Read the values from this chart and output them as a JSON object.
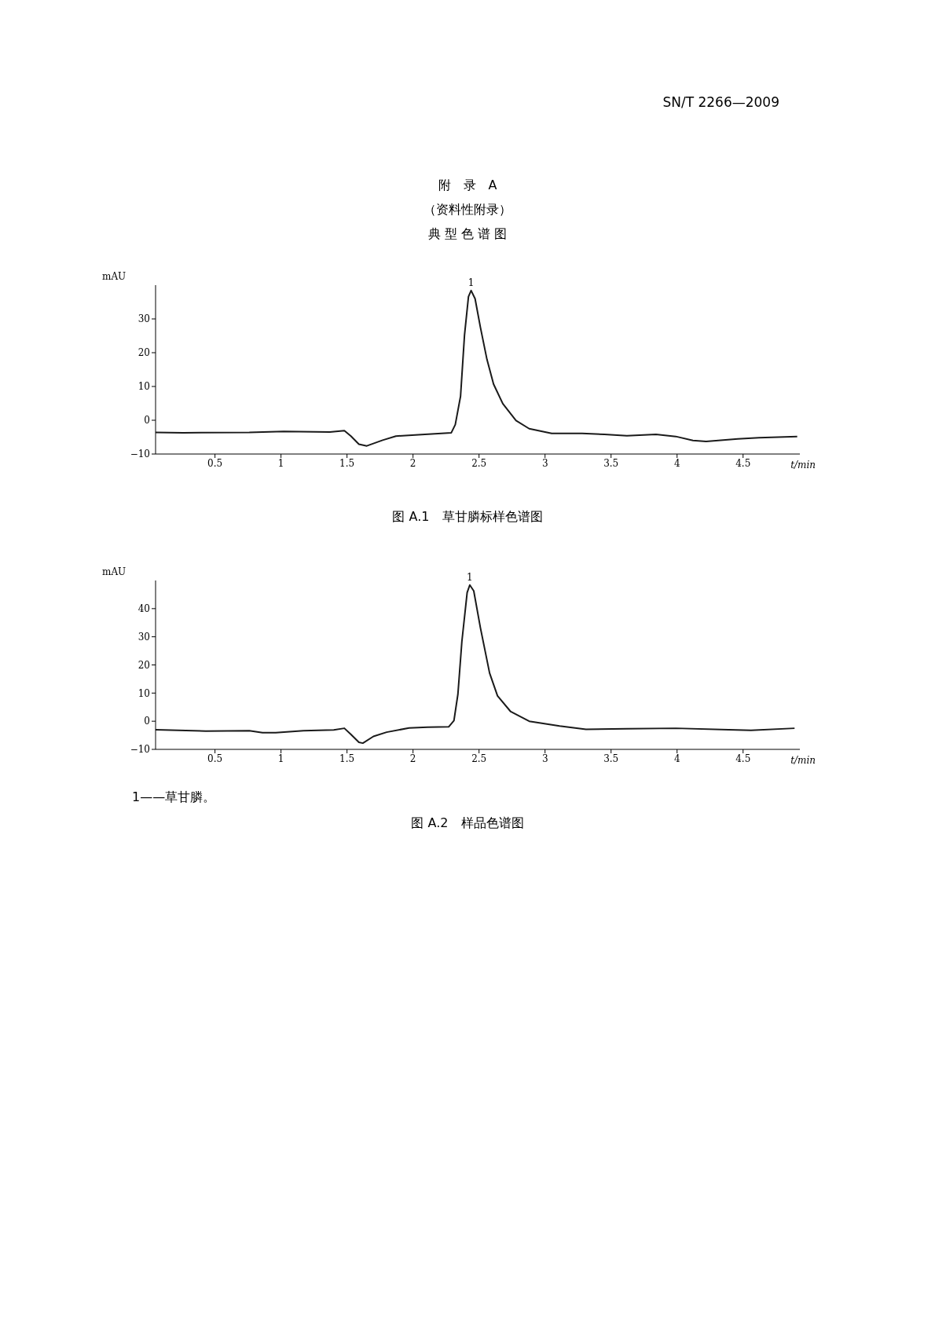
{
  "chart_data": [
    {
      "type": "line",
      "title": "图 A.1　草甘膦标样色谱图",
      "ylabel": "mAU",
      "xlabel": "t/min",
      "xlim": [
        0.05,
        4.93
      ],
      "xticks": [
        0.5,
        1,
        1.5,
        2,
        2.5,
        3,
        3.5,
        4,
        4.5
      ],
      "ylim": [
        -10,
        40
      ],
      "yticks": [
        -10,
        0,
        10,
        20,
        30
      ],
      "grid": false,
      "legend": false,
      "marker": "none",
      "annotations": [
        "SN/T 2266—2009",
        "附　录　A",
        "（资料性附录）",
        "典 型 色 谱 图",
        {
          "text": "1",
          "x": 2.44,
          "y": 38.4
        }
      ],
      "x": [
        0.05,
        0.26,
        0.76,
        1.02,
        1.37,
        1.48,
        1.53,
        1.59,
        1.65,
        1.77,
        1.87,
        2.04,
        2.29,
        2.32,
        2.36,
        2.39,
        2.42,
        2.44,
        2.47,
        2.51,
        2.56,
        2.61,
        2.68,
        2.78,
        2.88,
        3.05,
        3.28,
        3.45,
        3.62,
        3.84,
        3.99,
        4.12,
        4.22,
        4.46,
        4.62,
        4.91
      ],
      "series": [
        {
          "color": "#1a1a1a",
          "values": [
            -3.6,
            -3.7,
            -3.6,
            -3.3,
            -3.5,
            -3.1,
            -4.7,
            -7.1,
            -7.6,
            -5.9,
            -4.7,
            -4.3,
            -3.7,
            -1.3,
            7.1,
            25.2,
            36.6,
            38.4,
            36.0,
            27.6,
            18.0,
            10.7,
            4.9,
            -0.1,
            -2.5,
            -3.9,
            -3.9,
            -4.2,
            -4.6,
            -4.2,
            -4.8,
            -6.0,
            -6.3,
            -5.5,
            -5.2,
            -4.8
          ]
        }
      ]
    },
    {
      "type": "line",
      "title": "图 A.2　样品色谱图",
      "ylabel": "mAU",
      "xlabel": "t/min",
      "xlim": [
        0.05,
        4.93
      ],
      "xticks": [
        0.5,
        1,
        1.5,
        2,
        2.5,
        3,
        3.5,
        4,
        4.5
      ],
      "ylim": [
        -10,
        50
      ],
      "yticks": [
        -10,
        0,
        10,
        20,
        30,
        40
      ],
      "grid": false,
      "legend": false,
      "marker": "none",
      "annotations": [
        "1——草甘膦。",
        {
          "text": "1",
          "x": 2.43,
          "y": 48.4
        }
      ],
      "x": [
        0.05,
        0.43,
        0.76,
        0.86,
        0.96,
        1.17,
        1.4,
        1.48,
        1.53,
        1.59,
        1.62,
        1.7,
        1.8,
        1.97,
        2.11,
        2.27,
        2.31,
        2.34,
        2.37,
        2.41,
        2.43,
        2.46,
        2.51,
        2.58,
        2.64,
        2.74,
        2.88,
        3.11,
        3.31,
        3.62,
        3.99,
        4.39,
        4.56,
        4.89
      ],
      "series": [
        {
          "color": "#1a1a1a",
          "values": [
            -3.0,
            -3.5,
            -3.4,
            -4.1,
            -4.1,
            -3.4,
            -3.1,
            -2.5,
            -4.7,
            -7.5,
            -7.8,
            -5.4,
            -3.9,
            -2.4,
            -2.1,
            -2.0,
            0.2,
            9.6,
            28.3,
            45.7,
            48.4,
            46.3,
            33.3,
            17.1,
            9.0,
            3.4,
            0,
            -1.7,
            -2.9,
            -2.7,
            -2.5,
            -3.0,
            -3.2,
            -2.5
          ]
        }
      ]
    }
  ]
}
